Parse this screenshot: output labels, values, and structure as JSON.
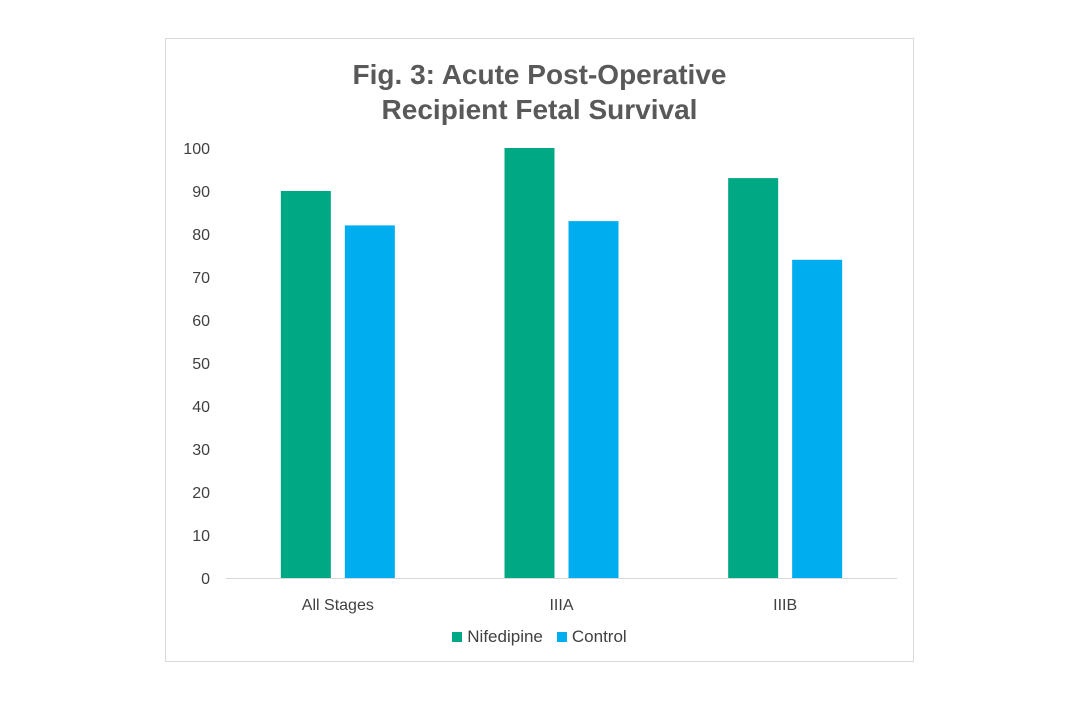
{
  "chart_data": {
    "type": "bar",
    "title_lines": [
      "Fig. 3: Acute Post-Operative",
      "Recipient Fetal Survival"
    ],
    "categories": [
      "All Stages",
      "IIIA",
      "IIIB"
    ],
    "series": [
      {
        "name": "Nifedipine",
        "color": "#00a884",
        "values": [
          90,
          100,
          93
        ]
      },
      {
        "name": "Control",
        "color": "#00adef",
        "values": [
          82,
          83,
          74
        ]
      }
    ],
    "ylim": [
      0,
      100
    ],
    "yticks": [
      0,
      10,
      20,
      30,
      40,
      50,
      60,
      70,
      80,
      90,
      100
    ],
    "xlabel": "",
    "ylabel": "",
    "grid": false,
    "legend_position": "bottom"
  }
}
